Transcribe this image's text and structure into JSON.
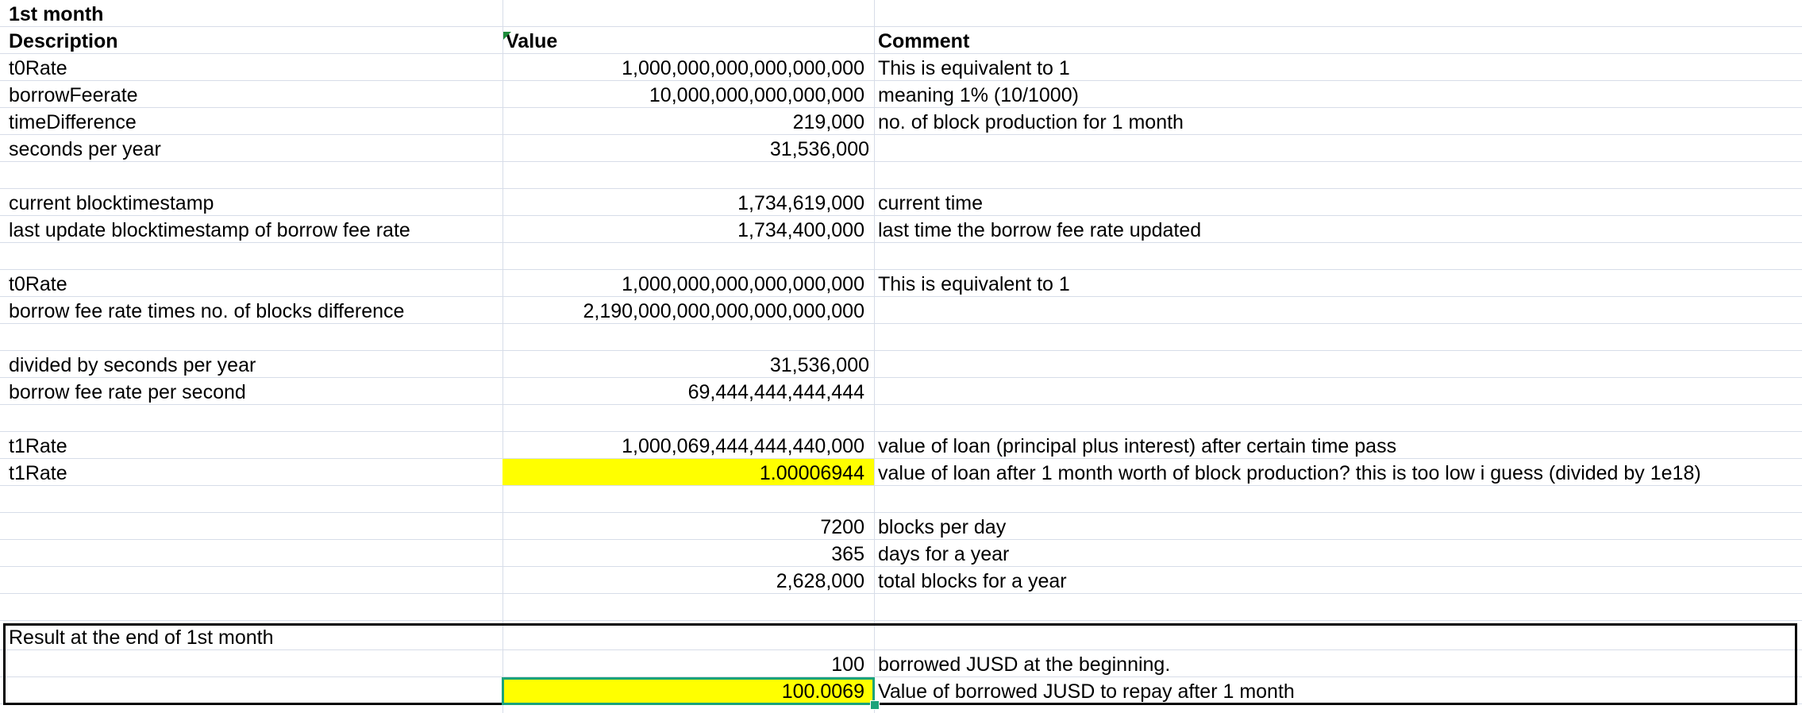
{
  "header": {
    "title": "1st month"
  },
  "columns": {
    "description": "Description",
    "value": "Value",
    "comment": "Comment"
  },
  "rows": [
    {
      "description": "t0Rate",
      "value": "1,000,000,000,000,000,000",
      "comment": "This is equivalent to 1"
    },
    {
      "description": "borrowFeerate",
      "value": "10,000,000,000,000,000",
      "comment": "meaning 1% (10/1000)"
    },
    {
      "description": "timeDifference",
      "value": "219,000",
      "comment": "no. of block production for 1 month"
    },
    {
      "description": "seconds per year",
      "value": "31,536,000",
      "comment": ""
    },
    {
      "description": "",
      "value": "",
      "comment": ""
    },
    {
      "description": "current blocktimestamp",
      "value": "1,734,619,000",
      "comment": "current time"
    },
    {
      "description": "last update blocktimestamp of borrow fee rate",
      "value": "1,734,400,000",
      "comment": "last time the borrow fee rate updated"
    },
    {
      "description": "",
      "value": "",
      "comment": ""
    },
    {
      "description": "t0Rate",
      "value": "1,000,000,000,000,000,000",
      "comment": "This is equivalent to 1"
    },
    {
      "description": "borrow fee rate times no. of blocks difference",
      "value": "2,190,000,000,000,000,000,000",
      "comment": ""
    },
    {
      "description": "",
      "value": "",
      "comment": ""
    },
    {
      "description": "divided by seconds per year",
      "value": "31,536,000",
      "comment": ""
    },
    {
      "description": "borrow fee rate per second",
      "value": "69,444,444,444,444",
      "comment": ""
    },
    {
      "description": "",
      "value": "",
      "comment": ""
    },
    {
      "description": "t1Rate",
      "value": "1,000,069,444,444,440,000",
      "comment": "value of loan (principal plus interest) after certain time pass"
    },
    {
      "description": "t1Rate",
      "value": "1.00006944",
      "comment": "value of loan after 1 month worth of block production? this is too low i guess (divided by 1e18)",
      "highlight": true
    },
    {
      "description": "",
      "value": "",
      "comment": ""
    },
    {
      "description": "",
      "value": "7200",
      "comment": "blocks per day"
    },
    {
      "description": "",
      "value": "365",
      "comment": "days for a year"
    },
    {
      "description": "",
      "value": "2,628,000",
      "comment": "total blocks for a year"
    },
    {
      "description": "",
      "value": "",
      "comment": ""
    },
    {
      "description": "Result at the end of 1st month",
      "value": "",
      "comment": ""
    },
    {
      "description": "",
      "value": "100",
      "comment": "borrowed JUSD at the beginning."
    },
    {
      "description": "",
      "value": "100.0069",
      "comment": "Value of borrowed JUSD to repay after 1 month",
      "highlight": true,
      "selected": true
    }
  ],
  "colors": {
    "highlight": "#ffff00",
    "gridline": "#d7dde8",
    "selection": "#1aa37a",
    "result_border": "#000000"
  }
}
